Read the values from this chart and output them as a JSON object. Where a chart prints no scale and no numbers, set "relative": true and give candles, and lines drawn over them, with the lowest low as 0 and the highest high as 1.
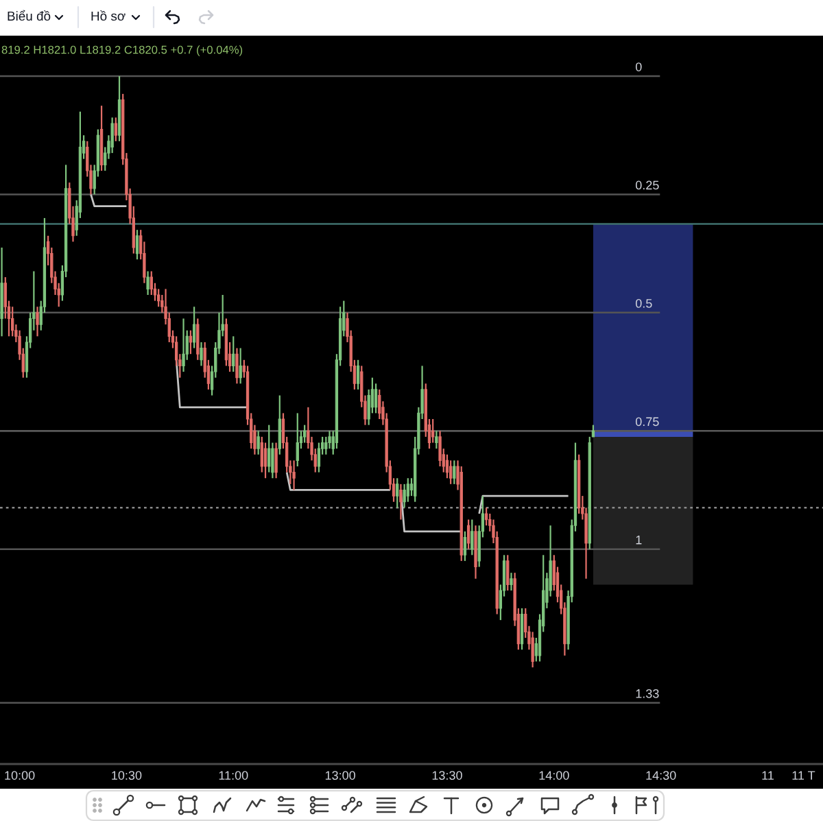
{
  "chart_data": {
    "type": "candlestick",
    "relative": true,
    "categories": [
      null,
      null,
      null,
      null,
      null,
      "10:00",
      null,
      null,
      null,
      null,
      null,
      null,
      null,
      null,
      null,
      null,
      null,
      null,
      null,
      null,
      null,
      null,
      null,
      null,
      null,
      null,
      null,
      null,
      null,
      null,
      null,
      null,
      null,
      null,
      null,
      "10:30",
      null,
      null,
      null,
      null,
      null,
      null,
      null,
      null,
      null,
      null,
      null,
      null,
      null,
      null,
      null,
      null,
      null,
      null,
      null,
      null,
      null,
      null,
      null,
      null,
      null,
      null,
      null,
      null,
      null,
      "11:00",
      null,
      null,
      null,
      null,
      null,
      null,
      null,
      null,
      null,
      null,
      null,
      null,
      null,
      null,
      null,
      null,
      null,
      null,
      null,
      null,
      null,
      null,
      null,
      null,
      null,
      null,
      null,
      null,
      null,
      "13:00",
      null,
      null,
      null,
      null,
      null,
      null,
      null,
      null,
      null,
      null,
      null,
      null,
      null,
      null,
      null,
      null,
      null,
      null,
      null,
      null,
      null,
      null,
      null,
      null,
      null,
      null,
      null,
      null,
      null,
      "13:30",
      null,
      null,
      null,
      null,
      null,
      null,
      null,
      null,
      null,
      null,
      null,
      null,
      null,
      null,
      null,
      null,
      null,
      null,
      null,
      null,
      null,
      null,
      null,
      null,
      null,
      null,
      null,
      null,
      null,
      "14:00",
      null,
      null,
      null,
      null,
      null,
      null,
      null,
      null,
      null,
      null,
      null,
      null,
      null,
      null,
      null,
      null,
      null,
      null,
      null,
      null,
      null,
      null,
      null,
      null,
      null,
      null,
      null,
      null,
      null,
      "14:30",
      null,
      null,
      null,
      null,
      null,
      null,
      null,
      null,
      null,
      null,
      null,
      null,
      null,
      null,
      null,
      null,
      null,
      null,
      null,
      null,
      null,
      null,
      null,
      null,
      null,
      null,
      null,
      null,
      null,
      "11",
      null,
      null,
      null,
      null,
      null,
      null,
      null,
      null,
      null,
      "11 T",
      null,
      null,
      null,
      null,
      null
    ],
    "ohlc": [
      [
        0.59,
        0.71,
        0.56,
        0.65
      ],
      [
        0.65,
        0.66,
        0.59,
        0.61
      ],
      [
        0.61,
        0.62,
        0.56,
        0.59
      ],
      [
        0.59,
        0.61,
        0.56,
        0.57
      ],
      [
        0.57,
        0.58,
        0.55,
        0.56
      ],
      [
        0.56,
        0.57,
        0.52,
        0.53
      ],
      [
        0.53,
        0.54,
        0.49,
        0.5
      ],
      [
        0.5,
        0.56,
        0.49,
        0.55
      ],
      [
        0.55,
        0.6,
        0.54,
        0.59
      ],
      [
        0.59,
        0.67,
        0.57,
        0.6
      ],
      [
        0.6,
        0.61,
        0.56,
        0.58
      ],
      [
        0.58,
        0.62,
        0.57,
        0.61
      ],
      [
        0.61,
        0.76,
        0.6,
        0.71
      ],
      [
        0.72,
        0.73,
        0.68,
        0.7
      ],
      [
        0.7,
        0.71,
        0.65,
        0.66
      ],
      [
        0.66,
        0.67,
        0.63,
        0.64
      ],
      [
        0.64,
        0.65,
        0.61,
        0.63
      ],
      [
        0.63,
        0.68,
        0.62,
        0.67
      ],
      [
        0.67,
        0.85,
        0.66,
        0.81
      ],
      [
        0.81,
        0.82,
        0.75,
        0.76
      ],
      [
        0.76,
        0.78,
        0.72,
        0.73
      ],
      [
        0.74,
        0.79,
        0.73,
        0.78
      ],
      [
        0.77,
        0.94,
        0.76,
        0.88
      ],
      [
        0.87,
        0.9,
        0.86,
        0.89
      ],
      [
        0.88,
        0.89,
        0.83,
        0.84
      ],
      [
        0.84,
        0.85,
        0.8,
        0.81
      ],
      [
        0.81,
        0.85,
        0.8,
        0.84
      ],
      [
        0.84,
        0.91,
        0.83,
        0.9
      ],
      [
        0.91,
        0.95,
        0.84,
        0.85
      ],
      [
        0.85,
        0.88,
        0.84,
        0.87
      ],
      [
        0.87,
        0.9,
        0.86,
        0.89
      ],
      [
        0.88,
        0.93,
        0.87,
        0.92
      ],
      [
        0.92,
        0.93,
        0.89,
        0.9
      ],
      [
        0.9,
        1.0,
        0.89,
        0.96
      ],
      [
        0.96,
        0.97,
        0.85,
        0.86
      ],
      [
        0.86,
        0.87,
        0.79,
        0.8
      ],
      [
        0.8,
        0.81,
        0.75,
        0.76
      ],
      [
        0.76,
        0.78,
        0.7,
        0.71
      ],
      [
        0.7,
        0.74,
        0.69,
        0.73
      ],
      [
        0.73,
        0.74,
        0.69,
        0.7
      ],
      [
        0.7,
        0.72,
        0.65,
        0.66
      ],
      [
        0.64,
        0.67,
        0.63,
        0.66
      ],
      [
        0.66,
        0.67,
        0.63,
        0.64
      ],
      [
        0.64,
        0.65,
        0.62,
        0.63
      ],
      [
        0.63,
        0.64,
        0.61,
        0.62
      ],
      [
        0.62,
        0.63,
        0.6,
        0.61
      ],
      [
        0.61,
        0.64,
        0.58,
        0.59
      ],
      [
        0.59,
        0.6,
        0.55,
        0.56
      ],
      [
        0.56,
        0.57,
        0.54,
        0.55
      ],
      [
        0.55,
        0.56,
        0.51,
        0.52
      ],
      [
        0.52,
        0.53,
        0.49,
        0.51
      ],
      [
        0.51,
        0.59,
        0.5,
        0.53
      ],
      [
        0.53,
        0.57,
        0.52,
        0.56
      ],
      [
        0.56,
        0.57,
        0.53,
        0.55
      ],
      [
        0.55,
        0.61,
        0.54,
        0.58
      ],
      [
        0.58,
        0.59,
        0.52,
        0.53
      ],
      [
        0.52,
        0.55,
        0.51,
        0.54
      ],
      [
        0.54,
        0.55,
        0.49,
        0.5
      ],
      [
        0.51,
        0.52,
        0.47,
        0.48
      ],
      [
        0.47,
        0.51,
        0.46,
        0.5
      ],
      [
        0.5,
        0.55,
        0.49,
        0.54
      ],
      [
        0.54,
        0.6,
        0.53,
        0.57
      ],
      [
        0.57,
        0.63,
        0.56,
        0.58
      ],
      [
        0.58,
        0.59,
        0.51,
        0.52
      ],
      [
        0.53,
        0.55,
        0.5,
        0.51
      ],
      [
        0.51,
        0.56,
        0.5,
        0.53
      ],
      [
        0.53,
        0.54,
        0.48,
        0.49
      ],
      [
        0.49,
        0.54,
        0.48,
        0.51
      ],
      [
        0.51,
        0.52,
        0.49,
        0.5
      ],
      [
        0.5,
        0.51,
        0.41,
        0.42
      ],
      [
        0.42,
        0.43,
        0.37,
        0.38
      ],
      [
        0.4,
        0.41,
        0.36,
        0.37
      ],
      [
        0.37,
        0.4,
        0.36,
        0.39
      ],
      [
        0.38,
        0.39,
        0.33,
        0.34
      ],
      [
        0.37,
        0.38,
        0.32,
        0.34
      ],
      [
        0.34,
        0.41,
        0.33,
        0.37
      ],
      [
        0.33,
        0.38,
        0.32,
        0.37
      ],
      [
        0.37,
        0.38,
        0.32,
        0.33
      ],
      [
        0.37,
        0.46,
        0.36,
        0.42
      ],
      [
        0.42,
        0.43,
        0.37,
        0.38
      ],
      [
        0.38,
        0.39,
        0.33,
        0.34
      ],
      [
        0.34,
        0.35,
        0.31,
        0.33
      ],
      [
        0.33,
        0.35,
        0.3,
        0.32
      ],
      [
        0.35,
        0.43,
        0.34,
        0.38
      ],
      [
        0.38,
        0.4,
        0.37,
        0.39
      ],
      [
        0.39,
        0.41,
        0.38,
        0.4
      ],
      [
        0.4,
        0.44,
        0.37,
        0.38
      ],
      [
        0.38,
        0.39,
        0.35,
        0.36
      ],
      [
        0.36,
        0.37,
        0.33,
        0.34
      ],
      [
        0.34,
        0.38,
        0.33,
        0.37
      ],
      [
        0.37,
        0.39,
        0.36,
        0.38
      ],
      [
        0.37,
        0.39,
        0.36,
        0.38
      ],
      [
        0.38,
        0.4,
        0.37,
        0.39
      ],
      [
        0.37,
        0.4,
        0.36,
        0.39
      ],
      [
        0.38,
        0.53,
        0.37,
        0.52
      ],
      [
        0.52,
        0.61,
        0.51,
        0.59
      ],
      [
        0.57,
        0.62,
        0.56,
        0.6
      ],
      [
        0.59,
        0.6,
        0.55,
        0.56
      ],
      [
        0.56,
        0.57,
        0.5,
        0.51
      ],
      [
        0.51,
        0.52,
        0.47,
        0.48
      ],
      [
        0.48,
        0.52,
        0.47,
        0.51
      ],
      [
        0.5,
        0.51,
        0.44,
        0.45
      ],
      [
        0.45,
        0.46,
        0.41,
        0.42
      ],
      [
        0.42,
        0.47,
        0.41,
        0.46
      ],
      [
        0.44,
        0.49,
        0.43,
        0.47
      ],
      [
        0.44,
        0.48,
        0.43,
        0.47
      ],
      [
        0.46,
        0.47,
        0.42,
        0.43
      ],
      [
        0.44,
        0.45,
        0.41,
        0.42
      ],
      [
        0.42,
        0.43,
        0.33,
        0.34
      ],
      [
        0.34,
        0.35,
        0.3,
        0.31
      ],
      [
        0.31,
        0.32,
        0.28,
        0.29
      ],
      [
        0.29,
        0.32,
        0.27,
        0.31
      ],
      [
        0.3,
        0.31,
        0.25,
        0.28
      ],
      [
        0.28,
        0.31,
        0.27,
        0.3
      ],
      [
        0.29,
        0.32,
        0.28,
        0.31
      ],
      [
        0.3,
        0.32,
        0.29,
        0.31
      ],
      [
        0.29,
        0.39,
        0.28,
        0.37
      ],
      [
        0.37,
        0.44,
        0.36,
        0.43
      ],
      [
        0.43,
        0.51,
        0.42,
        0.47
      ],
      [
        0.47,
        0.48,
        0.39,
        0.4
      ],
      [
        0.41,
        0.42,
        0.37,
        0.38
      ],
      [
        0.4,
        0.42,
        0.38,
        0.39
      ],
      [
        0.38,
        0.4,
        0.37,
        0.39
      ],
      [
        0.39,
        0.4,
        0.34,
        0.35
      ],
      [
        0.36,
        0.37,
        0.33,
        0.34
      ],
      [
        0.35,
        0.36,
        0.32,
        0.33
      ],
      [
        0.34,
        0.35,
        0.31,
        0.32
      ],
      [
        0.32,
        0.35,
        0.31,
        0.34
      ],
      [
        0.34,
        0.35,
        0.3,
        0.31
      ],
      [
        0.33,
        0.34,
        0.18,
        0.19
      ],
      [
        0.19,
        0.23,
        0.18,
        0.22
      ],
      [
        0.24,
        0.25,
        0.2,
        0.21
      ],
      [
        0.2,
        0.25,
        0.19,
        0.23
      ],
      [
        0.23,
        0.24,
        0.15,
        0.17
      ],
      [
        0.18,
        0.24,
        0.17,
        0.23
      ],
      [
        0.23,
        0.29,
        0.22,
        0.26
      ],
      [
        0.26,
        0.27,
        0.24,
        0.25
      ],
      [
        0.25,
        0.26,
        0.23,
        0.24
      ],
      [
        0.24,
        0.25,
        0.21,
        0.22
      ],
      [
        0.22,
        0.23,
        0.09,
        0.1
      ],
      [
        0.1,
        0.14,
        0.08,
        0.13
      ],
      [
        0.13,
        0.19,
        0.12,
        0.18
      ],
      [
        0.18,
        0.19,
        0.13,
        0.14
      ],
      [
        0.14,
        0.16,
        0.13,
        0.15
      ],
      [
        0.15,
        0.16,
        0.07,
        0.08
      ],
      [
        0.09,
        0.1,
        0.03,
        0.04
      ],
      [
        0.04,
        0.1,
        0.03,
        0.09
      ],
      [
        0.09,
        0.1,
        0.05,
        0.06
      ],
      [
        0.06,
        0.07,
        0.03,
        0.04
      ],
      [
        0.05,
        0.06,
        0.0,
        0.01
      ],
      [
        0.02,
        0.05,
        0.01,
        0.04
      ],
      [
        0.02,
        0.09,
        0.01,
        0.08
      ],
      [
        0.07,
        0.19,
        0.06,
        0.13
      ],
      [
        0.11,
        0.16,
        0.1,
        0.15
      ],
      [
        0.13,
        0.24,
        0.12,
        0.18
      ],
      [
        0.18,
        0.19,
        0.13,
        0.14
      ],
      [
        0.16,
        0.17,
        0.11,
        0.12
      ],
      [
        0.13,
        0.14,
        0.09,
        0.1
      ],
      [
        0.1,
        0.11,
        0.02,
        0.04
      ],
      [
        0.04,
        0.13,
        0.03,
        0.12
      ],
      [
        0.12,
        0.25,
        0.11,
        0.24
      ],
      [
        0.24,
        0.38,
        0.23,
        0.35
      ],
      [
        0.35,
        0.36,
        0.26,
        0.27
      ],
      [
        0.27,
        0.29,
        0.25,
        0.26
      ],
      [
        0.26,
        0.27,
        0.15,
        0.21
      ],
      [
        0.21,
        0.39,
        0.2,
        0.38
      ],
      [
        0.39,
        0.41,
        0.39,
        0.4
      ],
      null,
      null,
      null,
      null,
      null,
      null,
      null,
      null,
      null,
      null,
      null,
      null,
      null,
      null,
      null,
      null,
      null,
      null,
      null,
      null,
      null,
      null,
      null,
      null,
      null,
      null,
      null,
      null,
      null,
      null,
      null,
      null,
      null,
      null,
      null,
      null,
      null,
      null,
      null,
      null,
      null,
      null,
      null,
      null,
      null,
      null,
      null,
      null,
      null,
      null,
      null,
      null,
      null,
      null,
      null,
      null,
      null,
      null,
      null,
      null,
      null,
      null,
      null,
      null
    ],
    "colors": [
      "#7fc47e",
      "#e26e68",
      "#e26e68",
      "#e26e68",
      "#e26e68",
      "#e26e68",
      "#e26e68",
      "#7fc47e",
      "#7fc47e",
      "#7fc47e",
      "#e26e68",
      "#7fc47e",
      "#7fc47e",
      "#e26e68",
      "#e26e68",
      "#e26e68",
      "#e26e68",
      "#7fc47e",
      "#7fc47e",
      "#e26e68",
      "#e26e68",
      "#7fc47e",
      "#7fc47e",
      "#7fc47e",
      "#e26e68",
      "#e26e68",
      "#7fc47e",
      "#7fc47e",
      "#e26e68",
      "#7fc47e",
      "#7fc47e",
      "#7fc47e",
      "#e26e68",
      "#7fc47e",
      "#e26e68",
      "#e26e68",
      "#e26e68",
      "#e26e68",
      "#7fc47e",
      "#e26e68",
      "#e26e68",
      "#7fc47e",
      "#e26e68",
      "#e26e68",
      "#e26e68",
      "#e26e68",
      "#e26e68",
      "#e26e68",
      "#e26e68",
      "#e26e68",
      "#e26e68",
      "#7fc47e",
      "#7fc47e",
      "#e26e68",
      "#7fc47e",
      "#e26e68",
      "#7fc47e",
      "#e26e68",
      "#e26e68",
      "#7fc47e",
      "#7fc47e",
      "#7fc47e",
      "#7fc47e",
      "#e26e68",
      "#e26e68",
      "#7fc47e",
      "#e26e68",
      "#7fc47e",
      "#e26e68",
      "#e26e68",
      "#e26e68",
      "#e26e68",
      "#7fc47e",
      "#e26e68",
      "#e26e68",
      "#7fc47e",
      "#7fc47e",
      "#e26e68",
      "#7fc47e",
      "#e26e68",
      "#e26e68",
      "#e26e68",
      "#e26e68",
      "#7fc47e",
      "#7fc47e",
      "#7fc47e",
      "#e26e68",
      "#e26e68",
      "#e26e68",
      "#7fc47e",
      "#7fc47e",
      "#7fc47e",
      "#7fc47e",
      "#7fc47e",
      "#7fc47e",
      "#7fc47e",
      "#7fc47e",
      "#e26e68",
      "#e26e68",
      "#e26e68",
      "#7fc47e",
      "#e26e68",
      "#e26e68",
      "#7fc47e",
      "#7fc47e",
      "#7fc47e",
      "#e26e68",
      "#e26e68",
      "#e26e68",
      "#e26e68",
      "#e26e68",
      "#7fc47e",
      "#e26e68",
      "#7fc47e",
      "#7fc47e",
      "#7fc47e",
      "#7fc47e",
      "#7fc47e",
      "#7fc47e",
      "#e26e68",
      "#e26e68",
      "#e26e68",
      "#7fc47e",
      "#e26e68",
      "#e26e68",
      "#e26e68",
      "#e26e68",
      "#7fc47e",
      "#e26e68",
      "#e26e68",
      "#7fc47e",
      "#e26e68",
      "#7fc47e",
      "#e26e68",
      "#7fc47e",
      "#7fc47e",
      "#e26e68",
      "#e26e68",
      "#e26e68",
      "#e26e68",
      "#7fc47e",
      "#7fc47e",
      "#e26e68",
      "#7fc47e",
      "#e26e68",
      "#e26e68",
      "#7fc47e",
      "#e26e68",
      "#e26e68",
      "#e26e68",
      "#7fc47e",
      "#7fc47e",
      "#7fc47e",
      "#7fc47e",
      "#7fc47e",
      "#e26e68",
      "#e26e68",
      "#e26e68",
      "#e26e68",
      "#7fc47e",
      "#7fc47e",
      "#7fc47e",
      "#e26e68",
      "#e26e68",
      "#e26e68",
      "#7fc47e",
      "#7fc47e",
      null,
      null,
      null,
      null,
      null,
      null,
      null,
      null,
      null,
      null,
      null,
      null,
      null,
      null,
      null,
      null,
      null,
      null,
      null,
      null,
      null,
      null,
      null,
      null,
      null,
      null,
      null,
      null,
      null,
      null,
      null,
      null,
      null,
      null,
      null,
      null,
      null,
      null,
      null,
      null,
      null,
      null,
      null,
      null,
      null,
      null,
      null,
      null,
      null,
      null,
      null,
      null,
      null,
      null,
      null,
      null,
      null,
      null,
      null,
      null,
      null,
      null,
      null,
      null
    ],
    "series": [
      {
        "type": "line",
        "color": "#c4c4c4",
        "values": [
          null,
          null,
          null,
          null,
          null,
          null,
          null,
          null,
          null,
          null,
          null,
          null,
          null,
          null,
          null,
          null,
          null,
          null,
          null,
          null,
          null,
          null,
          null,
          null,
          null,
          0.8,
          0.78,
          0.78,
          0.78,
          0.78,
          0.78,
          0.78,
          0.78,
          0.78,
          0.78,
          0.78,
          null,
          null,
          null,
          null,
          null,
          null,
          null,
          null,
          null,
          null,
          null,
          null,
          null,
          0.52,
          0.44,
          0.44,
          0.44,
          0.44,
          0.44,
          0.44,
          0.44,
          0.44,
          0.44,
          0.44,
          0.44,
          0.44,
          0.44,
          0.44,
          0.44,
          0.44,
          0.44,
          0.44,
          0.44,
          0.44,
          null,
          null,
          null,
          null,
          null,
          null,
          null,
          null,
          null,
          null,
          0.33,
          0.3,
          0.3,
          0.3,
          0.3,
          0.3,
          0.3,
          0.3,
          0.3,
          0.3,
          0.3,
          0.3,
          0.3,
          0.3,
          0.3,
          0.3,
          0.3,
          0.3,
          0.3,
          0.3,
          0.3,
          0.3,
          0.3,
          0.3,
          0.3,
          0.3,
          0.3,
          0.3,
          0.3,
          0.3,
          null,
          null,
          0.3,
          0.23,
          0.23,
          0.23,
          0.23,
          0.23,
          0.23,
          0.23,
          0.23,
          0.23,
          0.23,
          0.23,
          0.23,
          0.23,
          0.23,
          0.23,
          0.23,
          0.23,
          null,
          null,
          null,
          null,
          0.26,
          0.29,
          0.29,
          0.29,
          0.29,
          0.29,
          0.29,
          0.29,
          0.29,
          0.29,
          0.29,
          0.29,
          0.29,
          0.29,
          0.29,
          0.29,
          0.29,
          0.29,
          0.29,
          0.29,
          0.29,
          0.29,
          0.29,
          0.29,
          0.29,
          0.29,
          null,
          null,
          null,
          null,
          null,
          null,
          null,
          null,
          null,
          null,
          null,
          null,
          null,
          null,
          null,
          null,
          null,
          null,
          null,
          null,
          null,
          null,
          null,
          null,
          null,
          null,
          null,
          null,
          null,
          null,
          null,
          null,
          null,
          null,
          null,
          null,
          null,
          null,
          null,
          null,
          null,
          null,
          null,
          null,
          null,
          null,
          null,
          null,
          null,
          null,
          null,
          null,
          null,
          null,
          null,
          null,
          null,
          null,
          null,
          null,
          null,
          null,
          null,
          null,
          null,
          null,
          null,
          null,
          null,
          null,
          null
        ]
      }
    ],
    "ref_lines": [
      {
        "axis": "y",
        "value": 1.0,
        "color": "#555555"
      },
      {
        "axis": "y",
        "value": 0.8,
        "color": "#555555"
      },
      {
        "axis": "y",
        "value": 0.6,
        "color": "#555555"
      },
      {
        "axis": "y",
        "value": 0.4,
        "color": "#555555"
      },
      {
        "axis": "y",
        "value": 0.2,
        "color": "#555555"
      },
      {
        "axis": "y",
        "value": -0.06,
        "color": "#555555"
      },
      {
        "axis": "y",
        "value": 0.75,
        "color": "#3f716e"
      },
      {
        "axis": "y",
        "value": 0.4,
        "color": "#5a5a5a"
      },
      {
        "axis": "y",
        "value": 0.27,
        "color": "#8a8a8a",
        "line_style": "dotted"
      }
    ],
    "bands": [
      {
        "axis": "y",
        "from": 0.4,
        "to": 0.75,
        "color": "#1f2a6c"
      },
      {
        "axis": "y",
        "from": 0.39,
        "to": 0.4,
        "color": "#3b4db3"
      },
      {
        "axis": "y",
        "from": 0.14,
        "to": 0.39,
        "color": "#222222"
      }
    ],
    "annotations": [
      "Biểu đồ",
      "Hồ sơ",
      "819.2 H1821.0 L1819.2 C1820.5 +0.7 (+0.04%)",
      {
        "text": "0",
        "y": 1.0
      },
      {
        "text": "0.25",
        "y": 0.8
      },
      {
        "text": "0.5",
        "y": 0.6
      },
      {
        "text": "0.75",
        "y": 0.4
      },
      {
        "text": "1",
        "y": 0.2
      },
      {
        "text": "1.33",
        "y": -0.06
      }
    ]
  }
}
